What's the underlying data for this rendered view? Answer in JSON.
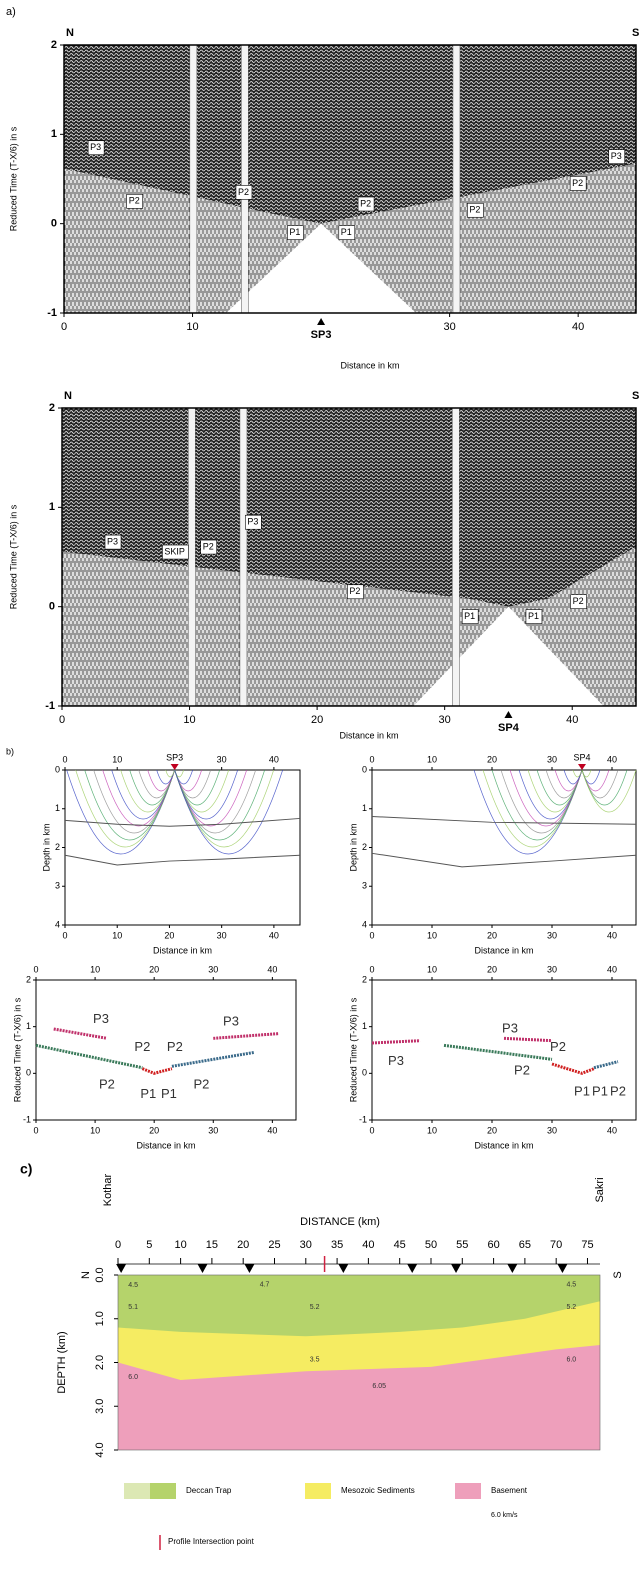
{
  "panel_a": {
    "label": "a)",
    "sections": [
      {
        "north": "N",
        "south": "S",
        "ylabel": "Reduced Time (T-X/6) in s",
        "xlabel": "Distance in km",
        "xlim": [
          0,
          44.5
        ],
        "ylim": [
          -1,
          2
        ],
        "xticks": [
          0,
          10,
          30,
          40
        ],
        "yticks": [
          -1,
          0,
          1,
          2
        ],
        "shot": {
          "label": "SP3",
          "x": 20
        },
        "phases": [
          {
            "text": "P3",
            "x": 2.5,
            "y": 0.85
          },
          {
            "text": "P2",
            "x": 5.5,
            "y": 0.25
          },
          {
            "text": "P2",
            "x": 14,
            "y": 0.35
          },
          {
            "text": "P1",
            "x": 18,
            "y": -0.1
          },
          {
            "text": "P1",
            "x": 22,
            "y": -0.1
          },
          {
            "text": "P2",
            "x": 23.5,
            "y": 0.22
          },
          {
            "text": "P2",
            "x": 32,
            "y": 0.15
          },
          {
            "text": "P2",
            "x": 40,
            "y": 0.45
          },
          {
            "text": "P3",
            "x": 43,
            "y": 0.75
          }
        ]
      },
      {
        "north": "N",
        "south": "S",
        "ylabel": "Reduced Time (T-X/6) in s",
        "xlabel": "Distance in km",
        "xlim": [
          0,
          45
        ],
        "ylim": [
          -1,
          2
        ],
        "xticks": [
          0,
          10,
          20,
          30,
          40
        ],
        "yticks": [
          -1,
          0,
          1,
          2
        ],
        "shot": {
          "label": "SP4",
          "x": 35
        },
        "phases": [
          {
            "text": "P3",
            "x": 4,
            "y": 0.65
          },
          {
            "text": "SKIP",
            "x": 8.5,
            "y": 0.55
          },
          {
            "text": "P2",
            "x": 11.5,
            "y": 0.6
          },
          {
            "text": "P3",
            "x": 15,
            "y": 0.85
          },
          {
            "text": "P2",
            "x": 23,
            "y": 0.15
          },
          {
            "text": "P1",
            "x": 32,
            "y": -0.1
          },
          {
            "text": "P1",
            "x": 37,
            "y": -0.1
          },
          {
            "text": "P2",
            "x": 40.5,
            "y": 0.05
          }
        ]
      }
    ]
  },
  "panel_b": {
    "label": "b)",
    "plots": [
      {
        "kind": "rays",
        "xlabel": "Distance in km",
        "ylabel": "Depth in km",
        "xlim": [
          0,
          45
        ],
        "ylim": [
          4,
          0
        ],
        "xticks_top": [
          0,
          10,
          30,
          40
        ],
        "xticks": [
          0,
          10,
          20,
          30,
          40
        ],
        "yticks": [
          0,
          1,
          2,
          3,
          4
        ],
        "shot": {
          "label": "SP3",
          "x": 21
        },
        "boundaries": [
          {
            "x": [
              0,
              10,
              20,
              30,
              45
            ],
            "y": [
              1.3,
              1.4,
              1.45,
              1.4,
              1.25
            ]
          },
          {
            "x": [
              0,
              10,
              20,
              30,
              45
            ],
            "y": [
              2.2,
              2.45,
              2.35,
              2.3,
              2.2
            ]
          }
        ]
      },
      {
        "kind": "rays",
        "xlabel": "Distance in km",
        "ylabel": "Depth in km",
        "xlim": [
          0,
          44
        ],
        "ylim": [
          4,
          0
        ],
        "xticks_top": [
          0,
          10,
          20,
          30,
          40
        ],
        "xticks": [
          0,
          10,
          20,
          30,
          40
        ],
        "yticks": [
          0,
          1,
          2,
          3,
          4
        ],
        "shot": {
          "label": "SP4",
          "x": 35
        },
        "boundaries": [
          {
            "x": [
              0,
              20,
              44
            ],
            "y": [
              1.2,
              1.35,
              1.4
            ]
          },
          {
            "x": [
              0,
              15,
              30,
              44
            ],
            "y": [
              2.15,
              2.5,
              2.35,
              2.2
            ]
          }
        ]
      },
      {
        "kind": "times",
        "xlabel": "Distance in km",
        "ylabel": "Reduced Time (T-X/6) in s",
        "xlim": [
          0,
          44
        ],
        "ylim": [
          -1,
          2
        ],
        "xticks_top": [
          0,
          10,
          20,
          30,
          40
        ],
        "xticks": [
          0,
          10,
          20,
          30,
          40
        ],
        "yticks": [
          -1,
          0,
          1,
          2
        ],
        "series": [
          {
            "color": "#c0306a",
            "x": [
              3,
              12
            ],
            "y": [
              0.95,
              0.75
            ]
          },
          {
            "color": "#3a7a5a",
            "x": [
              0,
              18
            ],
            "y": [
              0.6,
              0.12
            ]
          },
          {
            "color": "#d02020",
            "x": [
              18,
              20,
              23
            ],
            "y": [
              0.1,
              0,
              0.1
            ]
          },
          {
            "color": "#3a6a8a",
            "x": [
              23,
              37
            ],
            "y": [
              0.15,
              0.45
            ]
          },
          {
            "color": "#c0306a",
            "x": [
              30,
              41
            ],
            "y": [
              0.75,
              0.85
            ]
          }
        ],
        "annotations": [
          {
            "text": "P3",
            "x": 11,
            "y": 1.15
          },
          {
            "text": "P2",
            "x": 18,
            "y": 0.55
          },
          {
            "text": "P2",
            "x": 23.5,
            "y": 0.55
          },
          {
            "text": "P2",
            "x": 12,
            "y": -0.25
          },
          {
            "text": "P1",
            "x": 19,
            "y": -0.45
          },
          {
            "text": "P1",
            "x": 22.5,
            "y": -0.45
          },
          {
            "text": "P2",
            "x": 28,
            "y": -0.25
          },
          {
            "text": "P3",
            "x": 33,
            "y": 1.1
          }
        ]
      },
      {
        "kind": "times",
        "xlabel": "Distance in km",
        "ylabel": "Reduced Time (T-X/6) in s",
        "xlim": [
          0,
          44
        ],
        "ylim": [
          -1,
          2
        ],
        "xticks_top": [
          0,
          10,
          20,
          30,
          40
        ],
        "xticks": [
          0,
          10,
          20,
          30,
          40
        ],
        "yticks": [
          -1,
          0,
          1,
          2
        ],
        "series": [
          {
            "color": "#c0306a",
            "x": [
              0,
              8
            ],
            "y": [
              0.65,
              0.7
            ]
          },
          {
            "color": "#3a7a5a",
            "x": [
              12,
              30
            ],
            "y": [
              0.6,
              0.3
            ]
          },
          {
            "color": "#c0306a",
            "x": [
              22,
              30
            ],
            "y": [
              0.75,
              0.7
            ]
          },
          {
            "color": "#d02020",
            "x": [
              30,
              35,
              37
            ],
            "y": [
              0.2,
              0,
              0.1
            ]
          },
          {
            "color": "#3a6a8a",
            "x": [
              37,
              41
            ],
            "y": [
              0.12,
              0.25
            ]
          }
        ],
        "annotations": [
          {
            "text": "P3",
            "x": 4,
            "y": 0.25
          },
          {
            "text": "P3",
            "x": 23,
            "y": 0.95
          },
          {
            "text": "P2",
            "x": 25,
            "y": 0.05
          },
          {
            "text": "P2",
            "x": 31,
            "y": 0.55
          },
          {
            "text": "P1",
            "x": 35,
            "y": -0.4
          },
          {
            "text": "P1",
            "x": 38,
            "y": -0.4
          },
          {
            "text": "P2",
            "x": 41,
            "y": -0.4
          }
        ]
      }
    ]
  },
  "panel_c": {
    "label": "c)",
    "xlabel": "DISTANCE (km)",
    "ylabel": "DEPTH (km)",
    "west": "Kothar",
    "east": "Sakri",
    "north": "N",
    "south": "S",
    "xlim": [
      0,
      77
    ],
    "ylim": [
      4,
      0
    ],
    "xticks": [
      0,
      5,
      10,
      15,
      20,
      25,
      30,
      35,
      40,
      45,
      50,
      55,
      60,
      65,
      70,
      75
    ],
    "yticks": [
      {
        "value": 0,
        "label": "0.0"
      },
      {
        "value": 1,
        "label": "1.0"
      },
      {
        "value": 2,
        "label": "2.0"
      },
      {
        "value": 3,
        "label": "3.0"
      },
      {
        "value": 4,
        "label": "4.0"
      }
    ],
    "shot_points_km": [
      0.5,
      13.5,
      21,
      36,
      47,
      54,
      63,
      71
    ],
    "intersection_km": 33,
    "trap_base": {
      "x": [
        0,
        10,
        30,
        45,
        55,
        65,
        77
      ],
      "y": [
        1.2,
        1.3,
        1.4,
        1.3,
        1.2,
        1.0,
        0.6
      ]
    },
    "sediment_base": {
      "x": [
        0,
        10,
        30,
        50,
        70,
        77
      ],
      "y": [
        2.0,
        2.4,
        2.2,
        2.1,
        1.7,
        1.6
      ]
    },
    "velocities": [
      {
        "text": "4.5",
        "x": 1,
        "y": 0.1
      },
      {
        "text": "5.1",
        "x": 1,
        "y": 0.6
      },
      {
        "text": "4.7",
        "x": 22,
        "y": 0.08
      },
      {
        "text": "5.2",
        "x": 30,
        "y": 0.6
      },
      {
        "text": "5.2",
        "x": 71,
        "y": 0.6
      },
      {
        "text": "4.5",
        "x": 71,
        "y": 0.08
      },
      {
        "text": "3.5",
        "x": 30,
        "y": 1.8
      },
      {
        "text": "6.0",
        "x": 1,
        "y": 2.2
      },
      {
        "text": "6.05",
        "x": 40,
        "y": 2.4
      },
      {
        "text": "6.0",
        "x": 71,
        "y": 1.8
      }
    ],
    "legend": [
      {
        "name": "Deccan Trap",
        "colors": [
          "#dce8b4",
          "#b5d36b"
        ]
      },
      {
        "name": "Mesozoic Sediments",
        "colors": [
          "#f5ec62"
        ]
      },
      {
        "name": "Basement",
        "colors": [
          "#ee9fbb"
        ]
      }
    ],
    "basement_velocity": "6.0 km/s",
    "intersection_label": "Profile Intersection point"
  }
}
